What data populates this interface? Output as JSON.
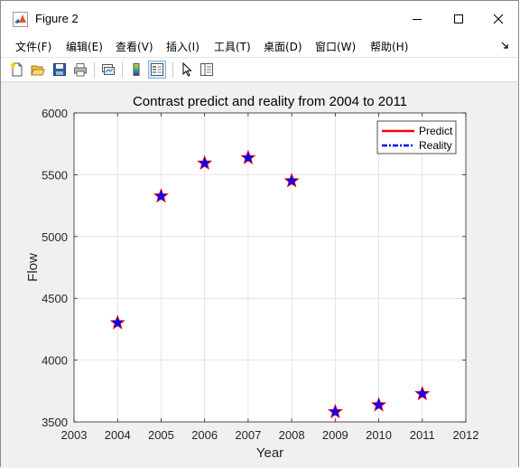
{
  "window": {
    "title": "Figure 2",
    "icon": "matlab-icon",
    "controls": [
      "minimize-icon",
      "maximize-icon",
      "close-icon"
    ]
  },
  "menu": {
    "items": [
      {
        "label": "文件(F)"
      },
      {
        "label": "编辑(E)"
      },
      {
        "label": "查看(V)"
      },
      {
        "label": "插入(I)"
      },
      {
        "label": "工具(T)"
      },
      {
        "label": "桌面(D)"
      },
      {
        "label": "窗口(W)"
      },
      {
        "label": "帮助(H)"
      }
    ],
    "overflow_icon": "dock-arrow-icon"
  },
  "toolbar": {
    "buttons": [
      {
        "icon": "new-figure-icon"
      },
      {
        "icon": "open-file-icon"
      },
      {
        "icon": "save-icon"
      },
      {
        "icon": "print-icon"
      },
      {
        "icon": "link-plot-icon"
      },
      {
        "icon": "colorbar-icon"
      },
      {
        "icon": "legend-icon",
        "active": true
      },
      {
        "icon": "pointer-icon"
      },
      {
        "icon": "property-inspector-icon"
      }
    ]
  },
  "chart_data": {
    "type": "scatter",
    "title": "Contrast predict and reality from 2004 to 2011",
    "xlabel": "Year",
    "ylabel": "Flow",
    "xlim": [
      2003,
      2012
    ],
    "ylim": [
      3500,
      6000
    ],
    "xticks": [
      2003,
      2004,
      2005,
      2006,
      2007,
      2008,
      2009,
      2010,
      2011,
      2012
    ],
    "yticks": [
      3500,
      4000,
      4500,
      5000,
      5500,
      6000
    ],
    "grid": true,
    "legend_position": "top-right",
    "x": [
      2004,
      2005,
      2006,
      2007,
      2008,
      2009,
      2010,
      2011
    ],
    "series": [
      {
        "name": "Predict",
        "color": "#ff0000",
        "line": "solid",
        "marker": "pentagram",
        "values": [
          4302,
          5327,
          5593,
          5637,
          5450,
          3582,
          3637,
          3728
        ]
      },
      {
        "name": "Reality",
        "color": "#0000ff",
        "line": "dash-dot",
        "marker": "pentagram",
        "values": [
          4302,
          5327,
          5593,
          5637,
          5450,
          3582,
          3637,
          3728
        ]
      }
    ]
  }
}
